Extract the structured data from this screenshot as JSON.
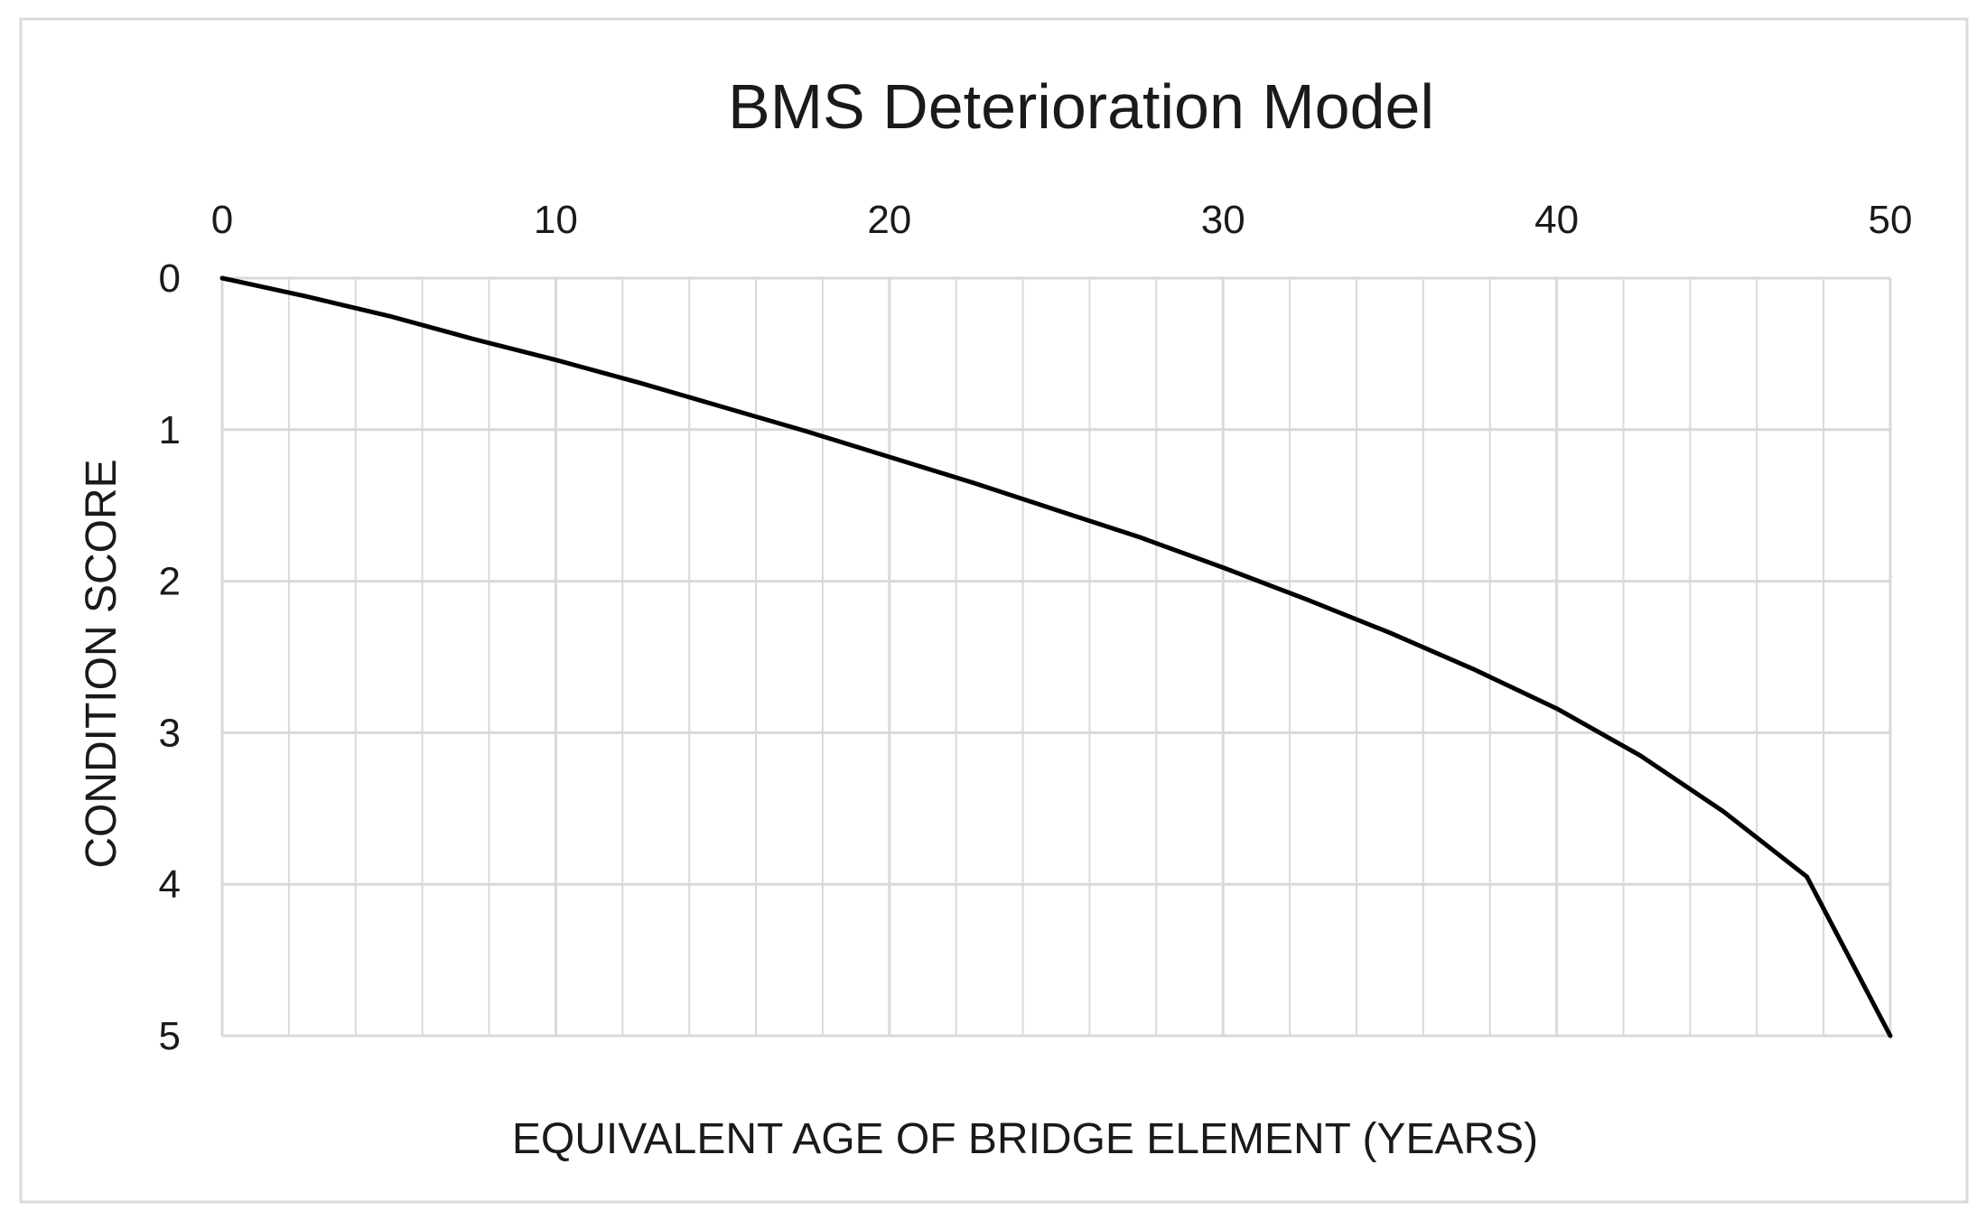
{
  "chart_data": {
    "type": "line",
    "title": "BMS Deterioration Model",
    "xlabel": "EQUIVALENT AGE OF BRIDGE ELEMENT (YEARS)",
    "ylabel": "CONDITION SCORE",
    "xlim": [
      0,
      50
    ],
    "ylim": [
      0,
      5
    ],
    "y_inverted": true,
    "x_axis_position": "top",
    "x_ticks": [
      0,
      10,
      20,
      30,
      40,
      50
    ],
    "y_ticks": [
      0,
      1,
      2,
      3,
      4,
      5
    ],
    "x_minor_step": 2,
    "grid": true,
    "legend": "none",
    "colors": {
      "line": "#000000",
      "grid": "#d9d9d9",
      "frame": "#d9d9d9"
    },
    "series": [
      {
        "x": [
          0,
          2.5,
          5,
          7.5,
          10,
          12.5,
          15,
          17.5,
          20,
          22.5,
          25,
          27.5,
          30,
          32.5,
          35,
          37.5,
          40,
          42.5,
          45,
          47.5,
          50
        ],
        "y": [
          0,
          0.12,
          0.25,
          0.4,
          0.54,
          0.69,
          0.85,
          1.01,
          1.18,
          1.35,
          1.53,
          1.71,
          1.91,
          2.12,
          2.34,
          2.58,
          2.84,
          3.15,
          3.52,
          3.95,
          5.0
        ]
      }
    ]
  }
}
